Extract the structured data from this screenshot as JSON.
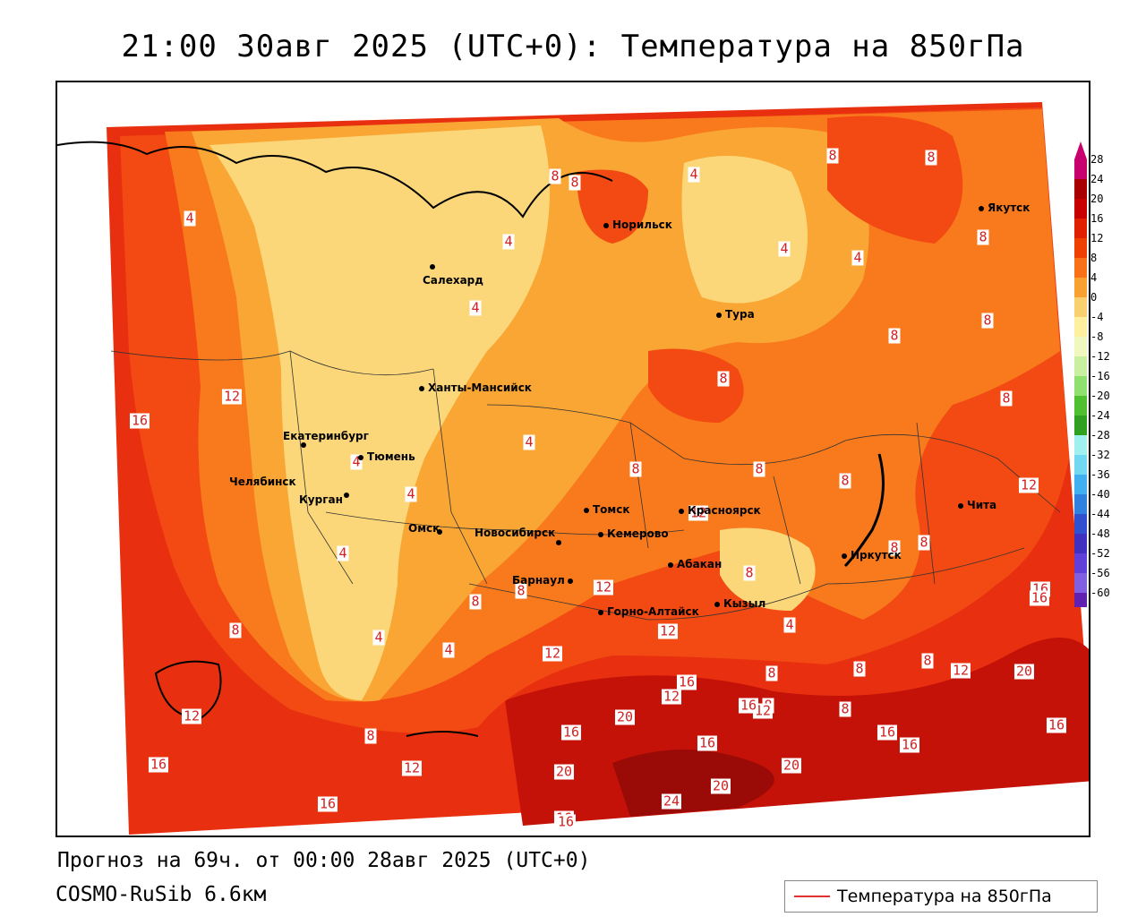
{
  "title": "21:00 30авг 2025 (UTC+0): Температура на 850гПа",
  "footer": {
    "forecast": "Прогноз на 69ч. от 00:00 28авг 2025 (UTC+0)",
    "model": "COSMO-RuSib 6.6км"
  },
  "legend": {
    "label": "Температура на 850гПа",
    "line_color": "#e03030"
  },
  "colorscale": {
    "ticks": [
      "28",
      "24",
      "20",
      "16",
      "12",
      "8",
      "4",
      "0",
      "-4",
      "-8",
      "-12",
      "-16",
      "-20",
      "-24",
      "-28",
      "-32",
      "-36",
      "-40",
      "-44",
      "-48",
      "-52",
      "-56",
      "-60"
    ],
    "colors": [
      "#c8006e",
      "#a80000",
      "#c80000",
      "#e02000",
      "#f04000",
      "#f87018",
      "#f8a030",
      "#f8d070",
      "#fff0a0",
      "#f0f8c0",
      "#c8f0a0",
      "#90e070",
      "#50c030",
      "#30a020",
      "#a0f0f0",
      "#70d8f0",
      "#40b0f0",
      "#3080e0",
      "#3050d0",
      "#4030c0",
      "#6040d8",
      "#8060e0",
      "#6020b0"
    ]
  },
  "cities": [
    {
      "name": "Норильск"
    },
    {
      "name": "Якутск"
    },
    {
      "name": "Салехард"
    },
    {
      "name": "Тура"
    },
    {
      "name": "Ханты-Мансийск"
    },
    {
      "name": "Екатеринбург"
    },
    {
      "name": "Тюмень"
    },
    {
      "name": "Челябинск"
    },
    {
      "name": "Курган"
    },
    {
      "name": "Томск"
    },
    {
      "name": "Красноярск"
    },
    {
      "name": "Омск"
    },
    {
      "name": "Новосибирск"
    },
    {
      "name": "Кемерово"
    },
    {
      "name": "Абакан"
    },
    {
      "name": "Иркутск"
    },
    {
      "name": "Чита"
    },
    {
      "name": "Барнаул"
    },
    {
      "name": "Горно-Алтайск"
    },
    {
      "name": "Кызыл"
    }
  ],
  "contour_labels": [
    "4",
    "4",
    "4",
    "4",
    "4",
    "4",
    "4",
    "4",
    "4",
    "4",
    "4",
    "4",
    "4",
    "8",
    "8",
    "8",
    "8",
    "8",
    "8",
    "8",
    "8",
    "8",
    "8",
    "8",
    "8",
    "8",
    "8",
    "8",
    "8",
    "8",
    "8",
    "8",
    "8",
    "8",
    "8",
    "8",
    "8",
    "12",
    "12",
    "12",
    "12",
    "12",
    "12",
    "12",
    "12",
    "12",
    "12",
    "12",
    "16",
    "16",
    "16",
    "16",
    "16",
    "16",
    "16",
    "16",
    "16",
    "16",
    "16",
    "16",
    "16",
    "16",
    "20",
    "20",
    "20",
    "20",
    "20",
    "24"
  ]
}
